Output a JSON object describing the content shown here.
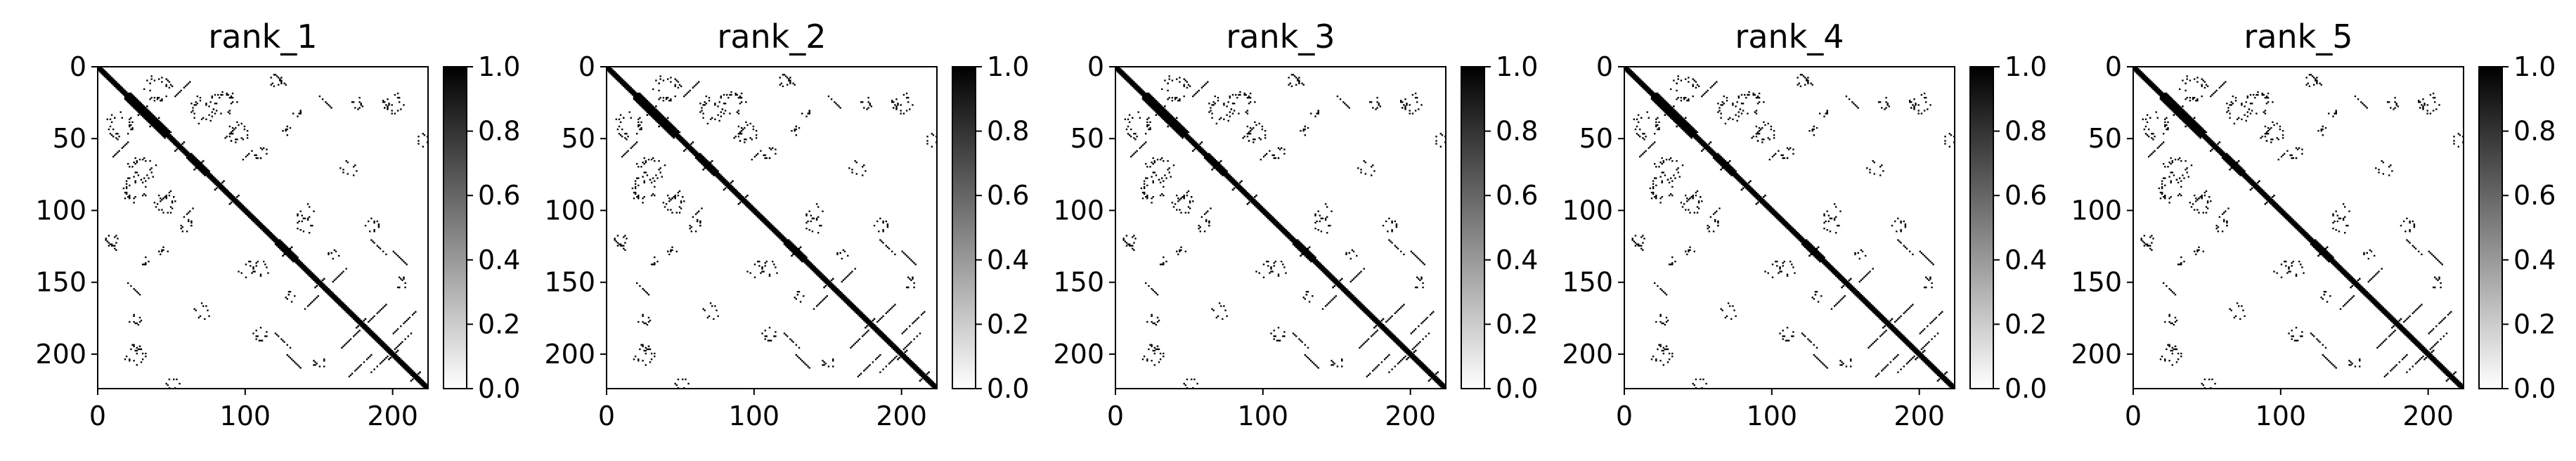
{
  "colors": {
    "map_low": "#ffffff",
    "map_high": "#000000",
    "axis": "#000000"
  },
  "chart_data": [
    {
      "type": "heatmap",
      "title": "rank_1",
      "n": 224,
      "xticks": [
        0,
        100,
        200
      ],
      "yticks": [
        0,
        50,
        100,
        150,
        200
      ],
      "xlim": [
        0,
        224
      ],
      "ylim": [
        224,
        0
      ],
      "colorbar": {
        "range": [
          0.0,
          1.0
        ],
        "ticks": [
          "0.0",
          "0.2",
          "0.4",
          "0.6",
          "0.8",
          "1.0"
        ],
        "cmap": "Greys"
      }
    },
    {
      "type": "heatmap",
      "title": "rank_2",
      "n": 224,
      "xticks": [
        0,
        100,
        200
      ],
      "yticks": [
        0,
        50,
        100,
        150,
        200
      ],
      "xlim": [
        0,
        224
      ],
      "ylim": [
        224,
        0
      ],
      "colorbar": {
        "range": [
          0.0,
          1.0
        ],
        "ticks": [
          "0.0",
          "0.2",
          "0.4",
          "0.6",
          "0.8",
          "1.0"
        ],
        "cmap": "Greys"
      }
    },
    {
      "type": "heatmap",
      "title": "rank_3",
      "n": 224,
      "xticks": [
        0,
        100,
        200
      ],
      "yticks": [
        0,
        50,
        100,
        150,
        200
      ],
      "xlim": [
        0,
        224
      ],
      "ylim": [
        224,
        0
      ],
      "colorbar": {
        "range": [
          0.0,
          1.0
        ],
        "ticks": [
          "0.0",
          "0.2",
          "0.4",
          "0.6",
          "0.8",
          "1.0"
        ],
        "cmap": "Greys"
      }
    },
    {
      "type": "heatmap",
      "title": "rank_4",
      "n": 224,
      "xticks": [
        0,
        100,
        200
      ],
      "yticks": [
        0,
        50,
        100,
        150,
        200
      ],
      "xlim": [
        0,
        224
      ],
      "ylim": [
        224,
        0
      ],
      "colorbar": {
        "range": [
          0.0,
          1.0
        ],
        "ticks": [
          "0.0",
          "0.2",
          "0.4",
          "0.6",
          "0.8",
          "1.0"
        ],
        "cmap": "Greys"
      }
    },
    {
      "type": "heatmap",
      "title": "rank_5",
      "n": 224,
      "xticks": [
        0,
        100,
        200
      ],
      "yticks": [
        0,
        50,
        100,
        150,
        200
      ],
      "xlim": [
        0,
        224
      ],
      "ylim": [
        224,
        0
      ],
      "colorbar": {
        "range": [
          0.0,
          1.0
        ],
        "ticks": [
          "0.0",
          "0.2",
          "0.4",
          "0.6",
          "0.8",
          "1.0"
        ],
        "cmap": "Greys"
      }
    }
  ]
}
